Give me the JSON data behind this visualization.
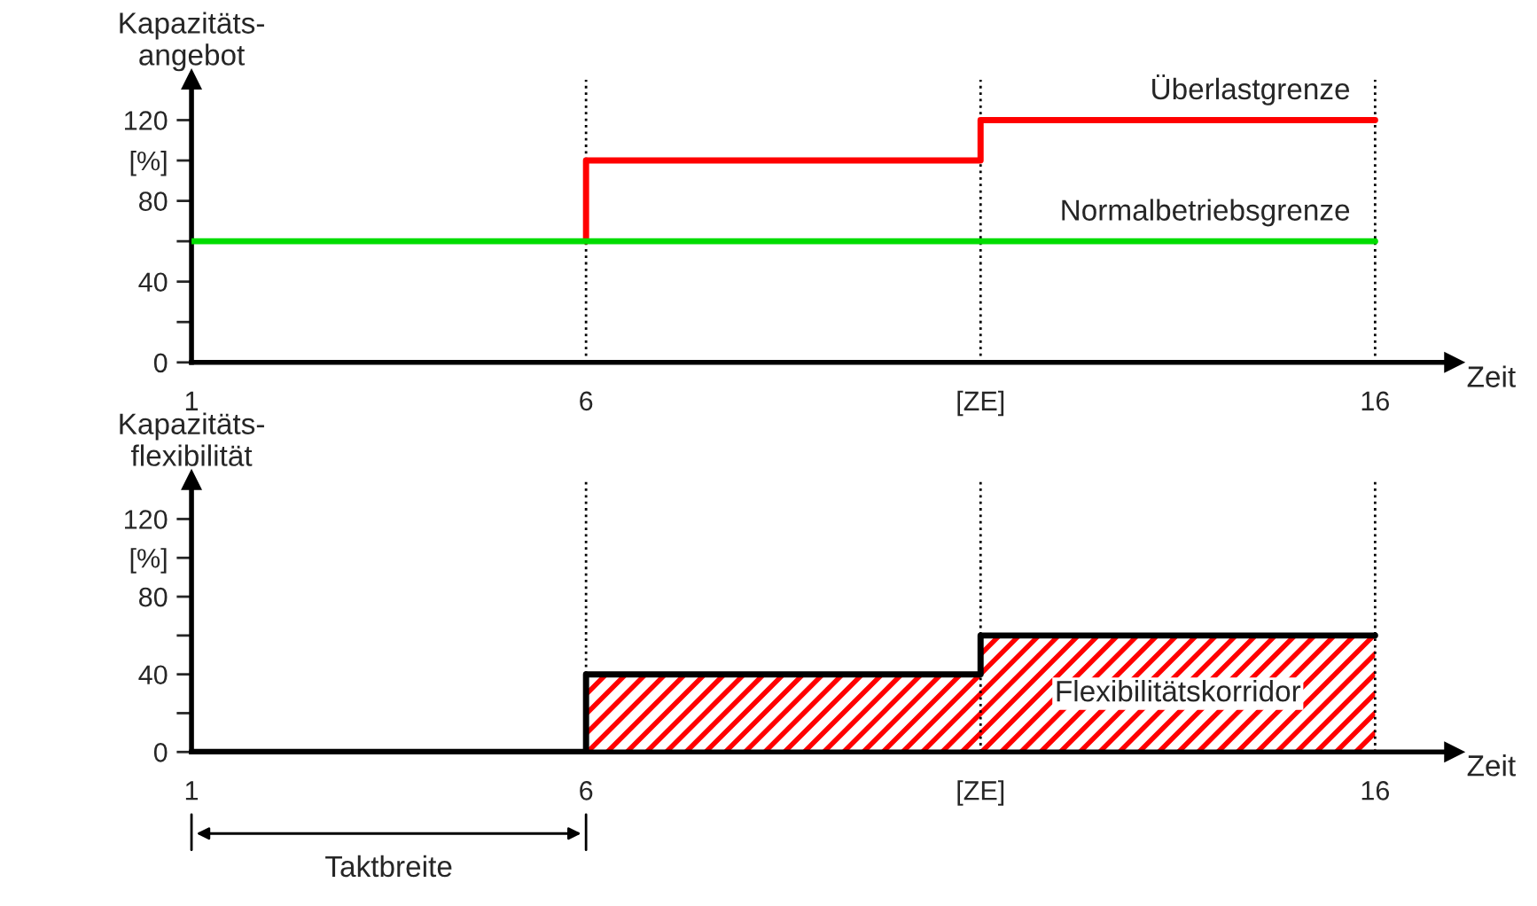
{
  "chart_data": [
    {
      "type": "line",
      "ylabel": "Kapazitäts-\nangebot",
      "xlabel": "Zeit",
      "xlim": [
        1,
        17
      ],
      "ylim": [
        0,
        140
      ],
      "xticks": [
        1,
        6,
        {
          "value": 11,
          "label": "[ZE]"
        },
        16
      ],
      "yticks": [
        0,
        {
          "value": 20,
          "label": null
        },
        40,
        {
          "value": 60,
          "label": null
        },
        80,
        {
          "value": 100,
          "label": "[%]"
        },
        120
      ],
      "series": [
        {
          "name": "Überlastgrenze",
          "color": "#ff0000",
          "x": [
            6,
            6,
            11,
            11,
            16
          ],
          "values": [
            60,
            100,
            100,
            120,
            120
          ]
        },
        {
          "name": "Normalbetriebsgrenze",
          "color": "#00dd00",
          "x": [
            1,
            16
          ],
          "values": [
            60,
            60
          ]
        }
      ],
      "ref_lines": [
        {
          "axis": "x",
          "value": 6,
          "color": "#000000",
          "line_style": "dotted"
        },
        {
          "axis": "x",
          "value": 11,
          "color": "#000000",
          "line_style": "dotted"
        },
        {
          "axis": "x",
          "value": 16,
          "color": "#000000",
          "line_style": "dotted"
        }
      ],
      "grid": false,
      "legend": false
    },
    {
      "type": "line",
      "ylabel": "Kapazitäts-\nflexibilität",
      "xlabel": "Zeit",
      "xlim": [
        1,
        17
      ],
      "ylim": [
        0,
        140
      ],
      "xticks": [
        1,
        6,
        {
          "value": 11,
          "label": "[ZE]"
        },
        16
      ],
      "yticks": [
        0,
        {
          "value": 20,
          "label": null
        },
        40,
        {
          "value": 60,
          "label": null
        },
        80,
        {
          "value": 100,
          "label": "[%]"
        },
        120
      ],
      "series": [
        {
          "type": "area",
          "name": "Flexibilitätskorridor",
          "color": "#ff0000",
          "x": [
            6,
            11,
            11,
            16
          ],
          "values": [
            40,
            40,
            60,
            60
          ]
        },
        {
          "type": "line",
          "color": "#000000",
          "x": [
            1,
            6,
            6,
            11,
            11,
            16
          ],
          "values": [
            0,
            0,
            40,
            40,
            60,
            60
          ]
        }
      ],
      "ref_lines": [
        {
          "axis": "x",
          "value": 6,
          "color": "#000000",
          "line_style": "dotted"
        },
        {
          "axis": "x",
          "value": 11,
          "color": "#000000",
          "line_style": "dotted"
        },
        {
          "axis": "x",
          "value": 16,
          "color": "#000000",
          "line_style": "dotted"
        }
      ],
      "annotations": [
        "Taktbreite"
      ],
      "grid": false,
      "legend": false
    }
  ]
}
